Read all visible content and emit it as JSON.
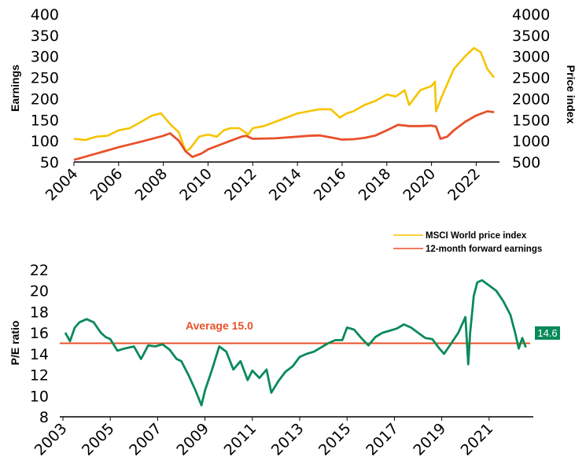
{
  "colors": {
    "price": "#f5c400",
    "earnings": "#e8512a",
    "pe": "#0a8a5a",
    "average": "#e8512a",
    "label_bg": "#0a8a5a"
  },
  "chart_data": [
    {
      "type": "line",
      "title": "",
      "x_ticks": [
        "2004",
        "2006",
        "2008",
        "2010",
        "2012",
        "2014",
        "2016",
        "2018",
        "2020",
        "2022"
      ],
      "xlim": [
        2004.0,
        2022.9
      ],
      "ylabel_left": "Earnings",
      "ylabel_right": "Price index",
      "ylim_left": [
        50,
        400
      ],
      "ylim_right": [
        500,
        4000
      ],
      "y_ticks_left": [
        "50",
        "100",
        "150",
        "200",
        "250",
        "300",
        "350",
        "400"
      ],
      "y_ticks_right": [
        "500",
        "1000",
        "1500",
        "2000",
        "2500",
        "3000",
        "3500",
        "4000"
      ],
      "legend": [
        "MSCI World price index",
        "12-month forward earnings"
      ],
      "legend_position": "bottom-right",
      "series": [
        {
          "name": "MSCI World price index",
          "axis": "right",
          "x": [
            2004.0,
            2004.5,
            2005.0,
            2005.5,
            2006.0,
            2006.5,
            2007.0,
            2007.5,
            2007.9,
            2008.3,
            2008.7,
            2009.0,
            2009.2,
            2009.6,
            2010.0,
            2010.4,
            2010.7,
            2011.0,
            2011.4,
            2011.8,
            2012.0,
            2012.5,
            2013.0,
            2013.5,
            2014.0,
            2014.5,
            2015.0,
            2015.5,
            2015.9,
            2016.2,
            2016.5,
            2017.0,
            2017.5,
            2018.0,
            2018.4,
            2018.8,
            2019.0,
            2019.5,
            2020.0,
            2020.15,
            2020.2,
            2020.5,
            2021.0,
            2021.5,
            2021.9,
            2022.2,
            2022.5,
            2022.8
          ],
          "values": [
            1050,
            1020,
            1100,
            1120,
            1250,
            1300,
            1450,
            1600,
            1650,
            1400,
            1200,
            750,
            820,
            1100,
            1150,
            1100,
            1250,
            1300,
            1300,
            1150,
            1300,
            1350,
            1450,
            1550,
            1650,
            1700,
            1750,
            1750,
            1550,
            1650,
            1700,
            1850,
            1950,
            2100,
            2050,
            2200,
            1850,
            2200,
            2300,
            2400,
            1700,
            2100,
            2700,
            3000,
            3200,
            3100,
            2700,
            2500
          ]
        },
        {
          "name": "12-month forward earnings",
          "axis": "left",
          "x": [
            2004.0,
            2005.0,
            2006.0,
            2007.0,
            2008.0,
            2008.3,
            2008.7,
            2009.0,
            2009.3,
            2009.7,
            2010.0,
            2010.5,
            2011.0,
            2011.5,
            2011.7,
            2012.0,
            2013.0,
            2014.0,
            2014.5,
            2015.0,
            2015.5,
            2016.0,
            2016.5,
            2017.0,
            2017.5,
            2018.0,
            2018.5,
            2019.0,
            2019.5,
            2020.0,
            2020.2,
            2020.4,
            2020.7,
            2021.0,
            2021.5,
            2022.0,
            2022.5,
            2022.8
          ],
          "values": [
            55,
            70,
            85,
            98,
            112,
            118,
            100,
            75,
            62,
            70,
            80,
            90,
            100,
            110,
            112,
            105,
            106,
            110,
            112,
            113,
            108,
            103,
            104,
            107,
            113,
            125,
            138,
            135,
            135,
            136,
            134,
            105,
            110,
            125,
            145,
            160,
            170,
            168
          ]
        }
      ]
    },
    {
      "type": "line",
      "title": "",
      "ylabel": "P/E ratio",
      "x_ticks": [
        "2003",
        "2005",
        "2007",
        "2009",
        "2011",
        "2013",
        "2015",
        "2017",
        "2019",
        "2021"
      ],
      "xlim": [
        2003.0,
        2022.7
      ],
      "y_ticks": [
        "8",
        "10",
        "12",
        "14",
        "16",
        "18",
        "20",
        "22"
      ],
      "ylim": [
        8,
        22
      ],
      "annotation": "Average 15.0",
      "average": 15.0,
      "last_value_label": "14.6",
      "series": [
        {
          "name": "",
          "x": [
            2003.1,
            2003.3,
            2003.5,
            2003.7,
            2004.0,
            2004.3,
            2004.6,
            2004.8,
            2005.0,
            2005.3,
            2005.6,
            2006.0,
            2006.3,
            2006.6,
            2006.9,
            2007.2,
            2007.5,
            2007.8,
            2008.0,
            2008.3,
            2008.6,
            2008.85,
            2009.0,
            2009.3,
            2009.6,
            2009.9,
            2010.2,
            2010.5,
            2010.8,
            2011.0,
            2011.3,
            2011.6,
            2011.8,
            2012.1,
            2012.4,
            2012.7,
            2013.0,
            2013.3,
            2013.6,
            2013.9,
            2014.2,
            2014.5,
            2014.8,
            2015.0,
            2015.3,
            2015.6,
            2015.9,
            2016.2,
            2016.5,
            2016.8,
            2017.1,
            2017.4,
            2017.7,
            2018.0,
            2018.3,
            2018.6,
            2018.9,
            2019.1,
            2019.4,
            2019.7,
            2020.0,
            2020.12,
            2020.2,
            2020.35,
            2020.5,
            2020.7,
            2021.0,
            2021.3,
            2021.6,
            2021.9,
            2022.1,
            2022.25,
            2022.4,
            2022.55
          ],
          "values": [
            16.0,
            15.2,
            16.5,
            17.0,
            17.3,
            17.0,
            16.0,
            15.6,
            15.4,
            14.3,
            14.5,
            14.7,
            13.5,
            14.8,
            14.7,
            14.9,
            14.4,
            13.5,
            13.3,
            12.0,
            10.5,
            9.1,
            10.5,
            12.5,
            14.7,
            14.2,
            12.5,
            13.3,
            11.5,
            12.4,
            11.7,
            12.5,
            10.3,
            11.4,
            12.3,
            12.8,
            13.7,
            14.0,
            14.2,
            14.6,
            15.0,
            15.3,
            15.3,
            16.5,
            16.3,
            15.5,
            14.8,
            15.6,
            16.0,
            16.2,
            16.4,
            16.8,
            16.5,
            16.0,
            15.5,
            15.4,
            14.5,
            14.0,
            15.0,
            16.0,
            17.5,
            13.0,
            16.0,
            19.5,
            20.8,
            21.0,
            20.5,
            20.0,
            19.0,
            17.7,
            16.0,
            14.5,
            15.5,
            14.6
          ]
        }
      ]
    }
  ]
}
